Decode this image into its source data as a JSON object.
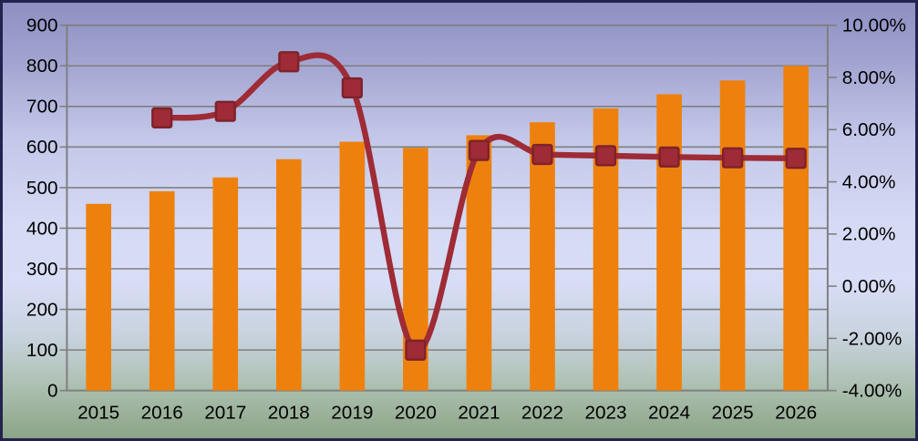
{
  "chart_data": {
    "type": "combo-bar-line",
    "title": "",
    "categories": [
      "2015",
      "2016",
      "2017",
      "2018",
      "2019",
      "2020",
      "2021",
      "2022",
      "2023",
      "2024",
      "2025",
      "2026"
    ],
    "series": [
      {
        "name": "value-bars",
        "type": "bar",
        "axis": "left",
        "color": "#EE810D",
        "values": [
          460,
          491,
          525,
          570,
          613,
          598,
          629,
          661,
          695,
          730,
          764,
          800
        ]
      },
      {
        "name": "growth-rate-line",
        "type": "line",
        "axis": "right",
        "color": "#9E2B35",
        "marker": "square",
        "marker_color": "#9E2B35",
        "marker_border_color": "#7E222B",
        "values": [
          null,
          6.45,
          6.7,
          8.6,
          7.6,
          -2.45,
          5.2,
          5.05,
          5.0,
          4.95,
          4.92,
          4.9
        ]
      }
    ],
    "left_axis": {
      "min": 0,
      "max": 900,
      "step": 100,
      "tick_labels": [
        "900",
        "800",
        "700",
        "600",
        "500",
        "400",
        "300",
        "200",
        "100",
        "0"
      ]
    },
    "right_axis": {
      "min": -4,
      "max": 10,
      "step": 2,
      "tick_labels": [
        "10.00%",
        "8.00%",
        "6.00%",
        "4.00%",
        "2.00%",
        "0.00%",
        "-2.00%",
        "-4.00%"
      ]
    },
    "grid": true,
    "legend": "none",
    "gridline_color": "#7F7F7F",
    "plot_border_color": "#7F7F7F",
    "label_color": "#000000",
    "frame_border_color": "#232350"
  }
}
